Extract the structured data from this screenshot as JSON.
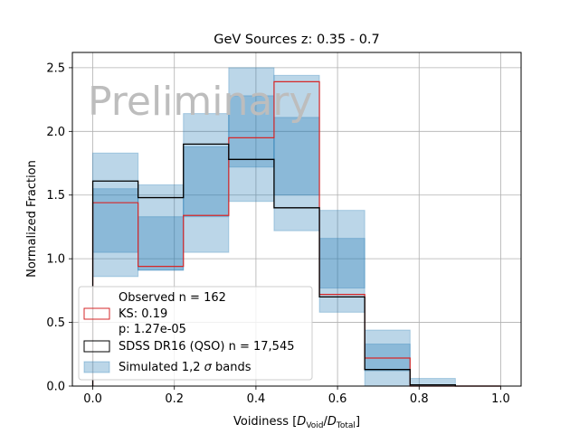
{
  "chart_data": {
    "type": "histogram-step",
    "title": "GeV Sources z: 0.35 - 0.7",
    "xlabel_prefix": "Voidiness [",
    "xlabel_num_D": "D",
    "xlabel_num_sub": "Void",
    "xlabel_sep": "/",
    "xlabel_den_D": "D",
    "xlabel_den_sub": "Total",
    "xlabel_suffix": "]",
    "ylabel": "Normalized Fraction",
    "xlim": [
      -0.05,
      1.05
    ],
    "ylim": [
      0,
      2.62
    ],
    "xticks": [
      0.0,
      0.2,
      0.4,
      0.6,
      0.8,
      1.0
    ],
    "xtick_labels": [
      "0.0",
      "0.2",
      "0.4",
      "0.6",
      "0.8",
      "1.0"
    ],
    "yticks": [
      0.0,
      0.5,
      1.0,
      1.5,
      2.0,
      2.5
    ],
    "ytick_labels": [
      "0.0",
      "0.5",
      "1.0",
      "1.5",
      "2.0",
      "2.5"
    ],
    "grid": true,
    "watermark": "Preliminary",
    "bin_edges": [
      0.0,
      0.1111,
      0.2222,
      0.3333,
      0.4444,
      0.5556,
      0.6667,
      0.7778,
      0.8889,
      1.0
    ],
    "observed": {
      "values": [
        1.44,
        0.94,
        1.34,
        1.95,
        2.39,
        0.72,
        0.22,
        0.0,
        0.0
      ],
      "color": "#d62728"
    },
    "sdss": {
      "values": [
        1.61,
        1.48,
        1.9,
        1.78,
        1.4,
        0.7,
        0.13,
        0.01,
        0.0
      ],
      "color": "#000000"
    },
    "band_2sigma": {
      "lower": [
        0.86,
        0.91,
        1.05,
        1.45,
        1.22,
        0.58,
        0.0,
        0.0,
        0.0
      ],
      "upper": [
        1.83,
        1.58,
        2.14,
        2.5,
        2.44,
        1.38,
        0.44,
        0.06,
        0.0
      ]
    },
    "band_1sigma": {
      "lower": [
        1.05,
        0.91,
        1.33,
        1.72,
        1.5,
        0.77,
        0.12,
        0.0,
        0.0
      ],
      "upper": [
        1.55,
        1.33,
        1.88,
        2.28,
        2.11,
        1.16,
        0.33,
        0.0,
        0.0
      ]
    },
    "band_color": "#1f77b4",
    "legend": {
      "placement": "lower-left",
      "entries": [
        {
          "lines": [
            "Observed n = 162",
            "KS: 0.19",
            "p: 1.27e-05"
          ],
          "style": "red-box"
        },
        {
          "lines": [
            "SDSS DR16 (QSO) n = 17,545"
          ],
          "style": "black-box"
        },
        {
          "prefix": "Simulated 1,2 ",
          "sigma": "σ",
          "suffix": " bands",
          "style": "blue-fill"
        }
      ]
    }
  }
}
